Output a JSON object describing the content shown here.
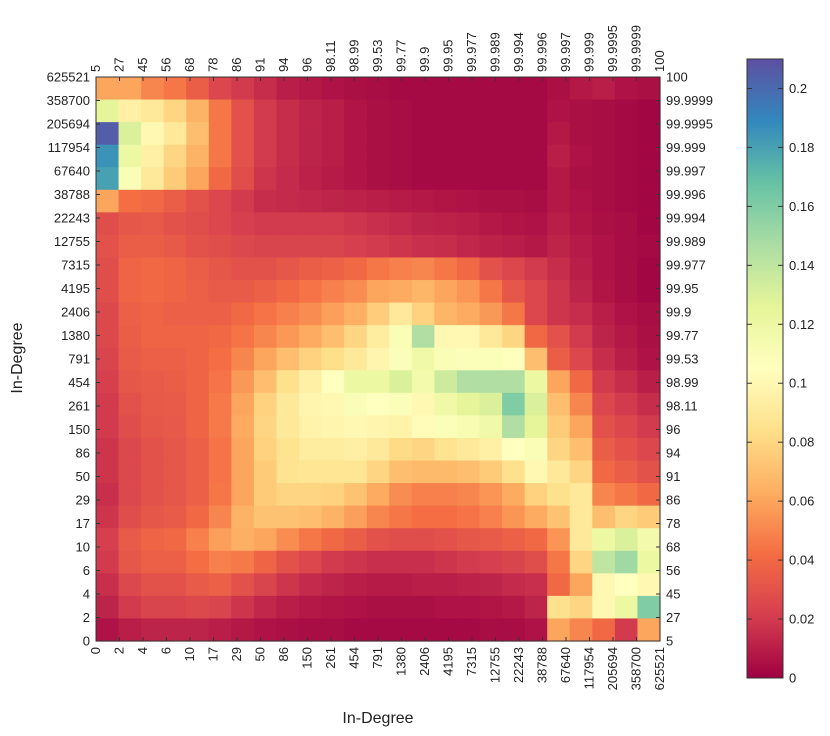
{
  "chart_data": {
    "type": "heatmap",
    "title": "",
    "xlabel": "In-Degree",
    "ylabel": "In-Degree",
    "x_bottom_ticks": [
      "0",
      "2",
      "4",
      "6",
      "10",
      "17",
      "29",
      "50",
      "86",
      "150",
      "261",
      "454",
      "791",
      "1380",
      "2406",
      "4195",
      "7315",
      "12755",
      "22243",
      "38788",
      "67640",
      "117954",
      "205694",
      "358700",
      "625521"
    ],
    "y_left_ticks": [
      "0",
      "2",
      "4",
      "6",
      "10",
      "17",
      "29",
      "50",
      "86",
      "150",
      "261",
      "454",
      "791",
      "1380",
      "2406",
      "4195",
      "7315",
      "12755",
      "22243",
      "38788",
      "67640",
      "117954",
      "205694",
      "358700",
      "625521"
    ],
    "x_top_ticks": [
      "5",
      "27",
      "45",
      "56",
      "68",
      "78",
      "86",
      "91",
      "94",
      "96",
      "98.11",
      "98.99",
      "99.53",
      "99.77",
      "99.9",
      "99.95",
      "99.977",
      "99.989",
      "99.994",
      "99.996",
      "99.997",
      "99.999",
      "99.9995",
      "99.9999",
      "100"
    ],
    "y_right_ticks": [
      "5",
      "27",
      "45",
      "56",
      "68",
      "78",
      "86",
      "91",
      "94",
      "96",
      "98.11",
      "98.99",
      "99.53",
      "99.77",
      "99.9",
      "99.95",
      "99.977",
      "99.989",
      "99.994",
      "99.996",
      "99.997",
      "99.999",
      "99.9995",
      "99.9999",
      "100"
    ],
    "colorbar": {
      "range": [
        0,
        0.21
      ],
      "ticks": [
        "0",
        "0.02",
        "0.04",
        "0.06",
        "0.08",
        "0.1",
        "0.12",
        "0.14",
        "0.16",
        "0.18",
        "0.2"
      ],
      "colormap": "spectral-reversed"
    },
    "grid_rows_top_to_bottom": [
      [
        0.06,
        0.06,
        0.05,
        0.045,
        0.035,
        0.025,
        0.02,
        0.015,
        0.01,
        0.008,
        0.006,
        0.005,
        0.004,
        0.003,
        0.003,
        0.003,
        0.003,
        0.003,
        0.003,
        0.003,
        0.005,
        0.008,
        0.01,
        0.006,
        0.005
      ],
      [
        0.125,
        0.095,
        0.09,
        0.08,
        0.065,
        0.045,
        0.03,
        0.02,
        0.015,
        0.012,
        0.01,
        0.007,
        0.005,
        0.004,
        0.003,
        0.003,
        0.003,
        0.003,
        0.003,
        0.003,
        0.006,
        0.005,
        0.004,
        0.003,
        0.002
      ],
      [
        0.205,
        0.13,
        0.1,
        0.09,
        0.07,
        0.045,
        0.03,
        0.02,
        0.015,
        0.012,
        0.01,
        0.007,
        0.005,
        0.004,
        0.003,
        0.003,
        0.003,
        0.003,
        0.003,
        0.003,
        0.008,
        0.005,
        0.004,
        0.003,
        0.002
      ],
      [
        0.185,
        0.12,
        0.095,
        0.08,
        0.065,
        0.045,
        0.03,
        0.02,
        0.015,
        0.012,
        0.01,
        0.007,
        0.005,
        0.004,
        0.003,
        0.003,
        0.003,
        0.003,
        0.003,
        0.003,
        0.01,
        0.006,
        0.004,
        0.003,
        0.002
      ],
      [
        0.18,
        0.11,
        0.09,
        0.075,
        0.06,
        0.04,
        0.028,
        0.018,
        0.014,
        0.011,
        0.009,
        0.007,
        0.005,
        0.004,
        0.003,
        0.003,
        0.003,
        0.003,
        0.003,
        0.003,
        0.008,
        0.005,
        0.004,
        0.003,
        0.002
      ],
      [
        0.06,
        0.042,
        0.04,
        0.035,
        0.03,
        0.025,
        0.02,
        0.015,
        0.014,
        0.013,
        0.012,
        0.011,
        0.01,
        0.009,
        0.008,
        0.007,
        0.006,
        0.005,
        0.005,
        0.004,
        0.008,
        0.006,
        0.004,
        0.003,
        0.002
      ],
      [
        0.028,
        0.032,
        0.033,
        0.03,
        0.028,
        0.025,
        0.022,
        0.02,
        0.02,
        0.02,
        0.02,
        0.018,
        0.016,
        0.014,
        0.012,
        0.011,
        0.01,
        0.008,
        0.007,
        0.006,
        0.01,
        0.007,
        0.005,
        0.004,
        0.002
      ],
      [
        0.03,
        0.035,
        0.035,
        0.033,
        0.03,
        0.028,
        0.026,
        0.024,
        0.024,
        0.024,
        0.024,
        0.022,
        0.02,
        0.018,
        0.016,
        0.015,
        0.013,
        0.011,
        0.01,
        0.008,
        0.012,
        0.009,
        0.006,
        0.004,
        0.003
      ],
      [
        0.028,
        0.038,
        0.04,
        0.038,
        0.035,
        0.032,
        0.03,
        0.03,
        0.032,
        0.035,
        0.037,
        0.04,
        0.045,
        0.048,
        0.05,
        0.045,
        0.04,
        0.03,
        0.025,
        0.02,
        0.015,
        0.01,
        0.006,
        0.004,
        0.002
      ],
      [
        0.028,
        0.038,
        0.04,
        0.038,
        0.036,
        0.034,
        0.034,
        0.036,
        0.04,
        0.044,
        0.048,
        0.052,
        0.06,
        0.062,
        0.066,
        0.06,
        0.055,
        0.045,
        0.032,
        0.025,
        0.018,
        0.012,
        0.007,
        0.004,
        0.002
      ],
      [
        0.026,
        0.036,
        0.038,
        0.036,
        0.036,
        0.036,
        0.04,
        0.044,
        0.048,
        0.052,
        0.058,
        0.064,
        0.076,
        0.09,
        0.078,
        0.066,
        0.062,
        0.056,
        0.045,
        0.025,
        0.018,
        0.015,
        0.01,
        0.006,
        0.004
      ],
      [
        0.026,
        0.035,
        0.038,
        0.038,
        0.038,
        0.04,
        0.044,
        0.05,
        0.056,
        0.062,
        0.07,
        0.08,
        0.092,
        0.11,
        0.145,
        0.1,
        0.1,
        0.09,
        0.08,
        0.04,
        0.03,
        0.02,
        0.012,
        0.008,
        0.005
      ],
      [
        0.024,
        0.034,
        0.036,
        0.036,
        0.038,
        0.042,
        0.05,
        0.06,
        0.07,
        0.078,
        0.084,
        0.09,
        0.098,
        0.108,
        0.118,
        0.11,
        0.108,
        0.108,
        0.106,
        0.07,
        0.035,
        0.025,
        0.015,
        0.01,
        0.006
      ],
      [
        0.022,
        0.032,
        0.034,
        0.035,
        0.038,
        0.044,
        0.056,
        0.07,
        0.085,
        0.095,
        0.105,
        0.12,
        0.12,
        0.13,
        0.115,
        0.135,
        0.145,
        0.145,
        0.145,
        0.12,
        0.06,
        0.04,
        0.02,
        0.015,
        0.01
      ],
      [
        0.02,
        0.03,
        0.033,
        0.034,
        0.038,
        0.046,
        0.06,
        0.078,
        0.09,
        0.098,
        0.1,
        0.11,
        0.105,
        0.108,
        0.1,
        0.118,
        0.125,
        0.13,
        0.16,
        0.13,
        0.07,
        0.05,
        0.025,
        0.02,
        0.015
      ],
      [
        0.02,
        0.028,
        0.032,
        0.033,
        0.038,
        0.046,
        0.062,
        0.08,
        0.09,
        0.096,
        0.098,
        0.1,
        0.098,
        0.096,
        0.102,
        0.108,
        0.112,
        0.118,
        0.145,
        0.125,
        0.075,
        0.06,
        0.03,
        0.025,
        0.02
      ],
      [
        0.018,
        0.026,
        0.03,
        0.032,
        0.036,
        0.044,
        0.06,
        0.078,
        0.086,
        0.092,
        0.092,
        0.094,
        0.09,
        0.082,
        0.08,
        0.086,
        0.09,
        0.095,
        0.105,
        0.11,
        0.08,
        0.07,
        0.035,
        0.03,
        0.025
      ],
      [
        0.018,
        0.026,
        0.03,
        0.032,
        0.036,
        0.044,
        0.06,
        0.075,
        0.086,
        0.088,
        0.088,
        0.088,
        0.08,
        0.07,
        0.068,
        0.068,
        0.07,
        0.075,
        0.085,
        0.1,
        0.09,
        0.08,
        0.04,
        0.035,
        0.03
      ],
      [
        0.016,
        0.026,
        0.03,
        0.032,
        0.036,
        0.045,
        0.06,
        0.075,
        0.08,
        0.08,
        0.078,
        0.072,
        0.062,
        0.052,
        0.048,
        0.048,
        0.05,
        0.055,
        0.062,
        0.078,
        0.085,
        0.09,
        0.05,
        0.045,
        0.04
      ],
      [
        0.018,
        0.028,
        0.032,
        0.034,
        0.04,
        0.05,
        0.065,
        0.072,
        0.072,
        0.07,
        0.065,
        0.058,
        0.05,
        0.045,
        0.042,
        0.042,
        0.044,
        0.048,
        0.055,
        0.062,
        0.072,
        0.09,
        0.07,
        0.08,
        0.075
      ],
      [
        0.022,
        0.034,
        0.038,
        0.04,
        0.048,
        0.058,
        0.064,
        0.06,
        0.052,
        0.045,
        0.04,
        0.035,
        0.03,
        0.028,
        0.028,
        0.03,
        0.032,
        0.034,
        0.036,
        0.04,
        0.055,
        0.09,
        0.12,
        0.13,
        0.115
      ],
      [
        0.02,
        0.032,
        0.036,
        0.036,
        0.042,
        0.048,
        0.046,
        0.038,
        0.03,
        0.025,
        0.02,
        0.018,
        0.016,
        0.016,
        0.016,
        0.018,
        0.02,
        0.022,
        0.024,
        0.028,
        0.045,
        0.08,
        0.14,
        0.15,
        0.12
      ],
      [
        0.016,
        0.026,
        0.03,
        0.03,
        0.034,
        0.036,
        0.03,
        0.024,
        0.018,
        0.014,
        0.012,
        0.01,
        0.009,
        0.009,
        0.01,
        0.01,
        0.011,
        0.012,
        0.014,
        0.016,
        0.04,
        0.06,
        0.1,
        0.105,
        0.1
      ],
      [
        0.012,
        0.02,
        0.024,
        0.024,
        0.026,
        0.024,
        0.018,
        0.013,
        0.01,
        0.008,
        0.007,
        0.006,
        0.005,
        0.005,
        0.005,
        0.006,
        0.006,
        0.007,
        0.008,
        0.012,
        0.085,
        0.08,
        0.1,
        0.12,
        0.16
      ],
      [
        0.006,
        0.01,
        0.012,
        0.012,
        0.012,
        0.01,
        0.008,
        0.006,
        0.005,
        0.004,
        0.004,
        0.003,
        0.003,
        0.003,
        0.003,
        0.003,
        0.003,
        0.004,
        0.004,
        0.006,
        0.06,
        0.05,
        0.04,
        0.02,
        0.06
      ]
    ]
  }
}
